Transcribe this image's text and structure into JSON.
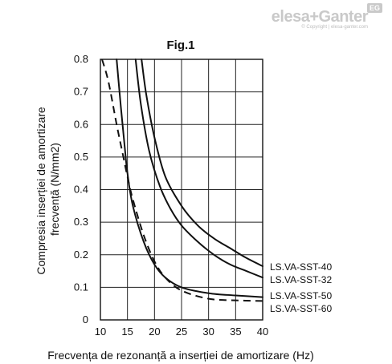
{
  "brand": {
    "logo": "elesa+Ganter",
    "badge": "EG",
    "copyright": "© Copyright | elesa-ganter.com"
  },
  "chart_data": {
    "type": "line",
    "title": "Fig.1",
    "xlabel": "Frecvența de rezonanță a inserției de amortizare (Hz)",
    "ylabel_lines": [
      "Compresia inserției de amortizare",
      "frecvență (N/mm2)"
    ],
    "xlim": [
      10,
      40
    ],
    "ylim": [
      0,
      0.8
    ],
    "xticks": [
      "10",
      "15",
      "20",
      "25",
      "30",
      "35",
      "40"
    ],
    "yticks": [
      "0",
      "0.1",
      "0.2",
      "0.3",
      "0.4",
      "0.5",
      "0.6",
      "0.7",
      "0.8"
    ],
    "grid": true,
    "series": [
      {
        "name": "LS.VA-SST-40",
        "style": "solid",
        "x": [
          17.6,
          18.5,
          20,
          22,
          25,
          28,
          31,
          34,
          37,
          40
        ],
        "y": [
          0.8,
          0.69,
          0.56,
          0.44,
          0.35,
          0.29,
          0.25,
          0.22,
          0.19,
          0.165
        ]
      },
      {
        "name": "LS.VA-SST-32",
        "style": "solid",
        "x": [
          16.5,
          17.5,
          19,
          21,
          23,
          25,
          28,
          31,
          34,
          37,
          40
        ],
        "y": [
          0.8,
          0.66,
          0.52,
          0.41,
          0.34,
          0.29,
          0.24,
          0.2,
          0.17,
          0.15,
          0.13
        ]
      },
      {
        "name": "LS.VA-SST-50",
        "style": "solid",
        "x": [
          13,
          13.8,
          14.5,
          15,
          16,
          18,
          20,
          22,
          25,
          30,
          35,
          40
        ],
        "y": [
          0.8,
          0.65,
          0.53,
          0.45,
          0.35,
          0.24,
          0.17,
          0.13,
          0.1,
          0.082,
          0.075,
          0.07
        ]
      },
      {
        "name": "LS.VA-SST-60",
        "style": "dashed",
        "x": [
          10.3,
          11.5,
          13,
          14,
          15,
          16,
          18,
          20,
          22,
          25,
          30,
          35,
          40
        ],
        "y": [
          0.8,
          0.73,
          0.6,
          0.52,
          0.44,
          0.37,
          0.26,
          0.18,
          0.13,
          0.09,
          0.065,
          0.06,
          0.058
        ]
      }
    ]
  }
}
